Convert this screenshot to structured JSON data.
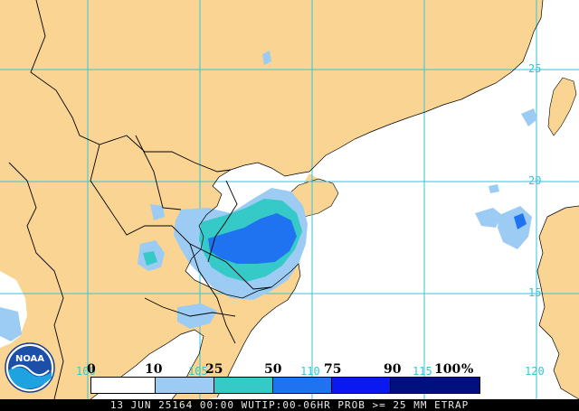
{
  "colors": {
    "land": "#f9d493",
    "ocean": "#ffffff",
    "gridline": "#33c6d8",
    "border": "#000000",
    "prob_10_25": "#9ccbf4",
    "prob_25_50": "#35c9c8",
    "prob_50_75": "#1f73f0",
    "prob_75_90": "#0a18f2",
    "prob_90_100": "#00107d"
  },
  "grid_labels": {
    "lat_25": "25",
    "lat_20": "20",
    "lat_15": "15",
    "lon_100": "100",
    "lon_105": "105",
    "lon_110": "110",
    "lon_115": "115",
    "lon_120": "120"
  },
  "legend": {
    "ticks": [
      "0",
      "10",
      "25",
      "50",
      "75",
      "90",
      "100"
    ],
    "unit": "%",
    "bins": [
      {
        "from": 0,
        "to": 10,
        "color": "#ffffff"
      },
      {
        "from": 10,
        "to": 25,
        "color": "#9ccbf4"
      },
      {
        "from": 25,
        "to": 50,
        "color": "#35c9c8"
      },
      {
        "from": 50,
        "to": 75,
        "color": "#1f73f0"
      },
      {
        "from": 75,
        "to": 90,
        "color": "#0a18f2"
      },
      {
        "from": 90,
        "to": 100,
        "color": "#00107d"
      }
    ]
  },
  "caption": "13 JUN 25164 00:00 WUTIP:00-06HR PROB >= 25 MM ETRAP",
  "logo_text": "NOAA"
}
